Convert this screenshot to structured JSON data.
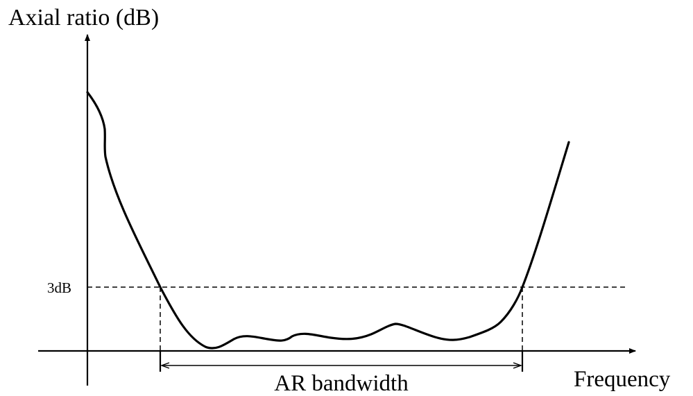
{
  "diagram": {
    "y_axis_label": "Axial ratio (dB)",
    "x_axis_label": "Frequency",
    "threshold_label": "3dB",
    "bandwidth_label": "AR bandwidth"
  },
  "colors": {
    "ink": "#000000",
    "background": "#ffffff"
  }
}
